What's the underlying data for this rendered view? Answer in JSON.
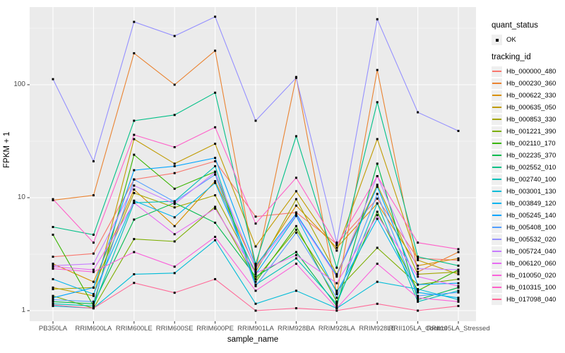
{
  "figure": {
    "panel_background": "#EBEBEB",
    "grid_color": "#FFFFFF",
    "axis_text_color": "#4D4D4D",
    "marker_color": "#000000"
  },
  "axes": {
    "x_title": "sample_name",
    "y_title": "FPKM + 1",
    "y_tick_labels": [
      "1",
      "10",
      "100"
    ]
  },
  "legend": {
    "quant_status_title": "quant_status",
    "quant_status_ok_label": "OK",
    "tracking_id_title": "tracking_id"
  },
  "chart_data": {
    "type": "line",
    "title": "",
    "xlabel": "sample_name",
    "ylabel": "FPKM + 1",
    "y_scale": "log10",
    "y_major_ticks": [
      1,
      10,
      100
    ],
    "y_minor_ticks": [
      3.162,
      31.623,
      316.23
    ],
    "ylim_log": [
      0.91,
      2.69
    ],
    "grid": true,
    "legend_position": "right",
    "marker": "black-square",
    "categories": [
      "PB350LA",
      "RRIM600LA",
      "RRIM600LE",
      "RRIM600SE",
      "RRIM600PE",
      "RRIM901LA",
      "RRIM928BA",
      "RRIM928LA",
      "RRIM928LE",
      "RRII105LA_Control",
      "RRII105LA_Stressed"
    ],
    "series": [
      {
        "name": "Hb_000000_480",
        "color": "#F8766D",
        "values": [
          3.0,
          3.2,
          14.5,
          16.5,
          21,
          6.8,
          7.4,
          3.9,
          9.8,
          2.9,
          2.8
        ]
      },
      {
        "name": "Hb_000230_360",
        "color": "#EA8331",
        "values": [
          9.5,
          10.5,
          190,
          100,
          200,
          2.3,
          117,
          1.4,
          135,
          2.2,
          3.3
        ]
      },
      {
        "name": "Hb_000622_330",
        "color": "#D89000",
        "values": [
          2.6,
          1.8,
          11.8,
          5.6,
          14,
          2.4,
          8.5,
          3.6,
          8.9,
          2.5,
          2.9
        ]
      },
      {
        "name": "Hb_000635_050",
        "color": "#C09B00",
        "values": [
          1.6,
          1.35,
          33,
          20,
          30,
          3.7,
          11.4,
          3.4,
          33,
          2.8,
          2.1
        ]
      },
      {
        "name": "Hb_000853_330",
        "color": "#A3A500",
        "values": [
          1.55,
          1.6,
          11,
          8.2,
          10.5,
          2.2,
          9.7,
          2.1,
          13,
          2.1,
          2.2
        ]
      },
      {
        "name": "Hb_001221_390",
        "color": "#7CAE00",
        "values": [
          1.35,
          1.05,
          4.3,
          4.1,
          8.3,
          1.9,
          5.2,
          1.5,
          3.6,
          1.7,
          1.9
        ]
      },
      {
        "name": "Hb_002110_170",
        "color": "#39B600",
        "values": [
          4.7,
          1.1,
          24,
          12,
          17,
          1.8,
          5.6,
          1.2,
          7.5,
          1.5,
          2.3
        ]
      },
      {
        "name": "Hb_002235_370",
        "color": "#00BB4E",
        "values": [
          1.2,
          1.15,
          6.4,
          9.0,
          6.0,
          2.0,
          3.3,
          1.1,
          20,
          1.25,
          1.6
        ]
      },
      {
        "name": "Hb_002552_010",
        "color": "#00C087",
        "values": [
          5.5,
          4.7,
          48,
          54,
          85,
          2.6,
          35,
          2.4,
          70,
          3.0,
          2.5
        ]
      },
      {
        "name": "Hb_002740_100",
        "color": "#00C0B8",
        "values": [
          1.15,
          1.1,
          9.0,
          9.3,
          19,
          1.7,
          2.9,
          1.15,
          8.9,
          1.2,
          1.5
        ]
      },
      {
        "name": "Hb_003001_130",
        "color": "#00BCD8",
        "values": [
          1.1,
          1.05,
          2.1,
          2.15,
          4.2,
          1.15,
          1.5,
          1.05,
          1.8,
          1.55,
          1.25
        ]
      },
      {
        "name": "Hb_003849_120",
        "color": "#00B4EF",
        "values": [
          1.9,
          1.4,
          9.4,
          6.7,
          13.5,
          2.1,
          6.9,
          1.45,
          6.5,
          1.45,
          1.3
        ]
      },
      {
        "name": "Hb_005245_140",
        "color": "#00A5FF",
        "values": [
          1.3,
          1.6,
          17.5,
          19,
          22.5,
          2.5,
          7.2,
          2.05,
          12.5,
          1.7,
          1.75
        ]
      },
      {
        "name": "Hb_005408_100",
        "color": "#529EFF",
        "values": [
          1.25,
          1.2,
          14.5,
          9.2,
          16,
          1.65,
          4.9,
          1.3,
          10.8,
          1.35,
          1.45
        ]
      },
      {
        "name": "Hb_005532_020",
        "color": "#9590FF",
        "values": [
          112,
          21,
          360,
          270,
          400,
          48,
          115,
          4.0,
          380,
          57,
          39
        ]
      },
      {
        "name": "Hb_005724_040",
        "color": "#C77CFF",
        "values": [
          2.5,
          2.6,
          12.8,
          8.8,
          16.8,
          2.35,
          7.0,
          2.0,
          15.5,
          2.35,
          2.3
        ]
      },
      {
        "name": "Hb_006120_060",
        "color": "#E76BF3",
        "values": [
          2.45,
          2.3,
          9.0,
          4.75,
          8.0,
          2.15,
          3.1,
          1.75,
          7.0,
          2.0,
          1.65
        ]
      },
      {
        "name": "Hb_010050_020",
        "color": "#FA62DB",
        "values": [
          2.35,
          2.2,
          3.3,
          2.45,
          4.5,
          1.5,
          2.6,
          1.05,
          2.6,
          1.3,
          1.2
        ]
      },
      {
        "name": "Hb_010315_100",
        "color": "#FF61C9",
        "values": [
          9.7,
          4.0,
          36,
          28,
          42,
          5.9,
          15,
          3.8,
          15.5,
          4.0,
          3.5
        ]
      },
      {
        "name": "Hb_017098_040",
        "color": "#FF6A98",
        "values": [
          1.12,
          1.05,
          1.76,
          1.44,
          1.9,
          1.0,
          1.05,
          1.0,
          1.15,
          1.0,
          1.1
        ]
      }
    ]
  }
}
